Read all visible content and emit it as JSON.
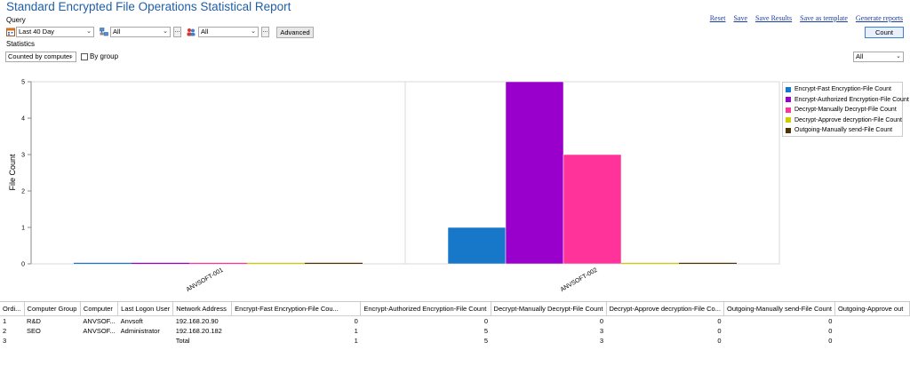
{
  "title": "Standard Encrypted File Operations Statistical Report",
  "toolbar_links": [
    "Reset",
    "Save",
    "Save Results",
    "Save as template",
    "Generate reports"
  ],
  "query": {
    "label": "Query",
    "date_range": "Last 40 Day",
    "computer_filter": "All",
    "user_filter": "All",
    "more_label": "...",
    "advanced_label": "Advanced",
    "count_label": "Count"
  },
  "statistics": {
    "label": "Statistics",
    "mode": "Counted by computer",
    "grouping_label": "By grouping",
    "grouping_checked": false,
    "right_filter": "All"
  },
  "chart_data": {
    "type": "bar",
    "categories": [
      "ANVSOFT-001",
      "ANVSOFT-002"
    ],
    "ylabel": "File Count",
    "ylim": [
      0,
      5
    ],
    "yticks": [
      0,
      1,
      2,
      3,
      4,
      5
    ],
    "grid": true,
    "legend_position": "right",
    "series": [
      {
        "name": "Encrypt-Fast Encryption-File Count",
        "color": "#1777c9",
        "values": [
          0,
          1
        ]
      },
      {
        "name": "Encrypt-Authorized Encryption-File Count",
        "color": "#9900cc",
        "values": [
          0,
          5
        ]
      },
      {
        "name": "Decrypt-Manually Decrypt-File Count",
        "color": "#ff3399",
        "values": [
          0,
          3
        ]
      },
      {
        "name": "Decrypt-Approve decryption-File Count",
        "color": "#cccc00",
        "values": [
          0,
          0
        ]
      },
      {
        "name": "Outgoing-Manually send-File Count",
        "color": "#4d3300",
        "values": [
          0,
          0
        ]
      }
    ]
  },
  "table": {
    "columns": [
      "Ordi...",
      "Computer Group",
      "Computer",
      "Last Logon User",
      "Network Address",
      "Encrypt-Fast Encryption-File Cou...",
      "Encrypt-Authorized Encryption-File Count",
      "Decrypt-Manually Decrypt-File Count",
      "Decrypt-Approve decryption-File Co...",
      "Outgoing-Manually send-File Count",
      "Outgoing-Approve out"
    ],
    "rows": [
      [
        "1",
        "R&D",
        "ANVSOF...",
        "Anvsoft",
        "192.168.20.90",
        "0",
        "0",
        "0",
        "0",
        "0",
        ""
      ],
      [
        "2",
        "SEO",
        "ANVSOF...",
        "Administrator",
        "192.168.20.182",
        "1",
        "5",
        "3",
        "0",
        "0",
        ""
      ],
      [
        "3",
        "",
        "",
        "",
        "Total",
        "1",
        "5",
        "3",
        "0",
        "0",
        ""
      ]
    ]
  }
}
